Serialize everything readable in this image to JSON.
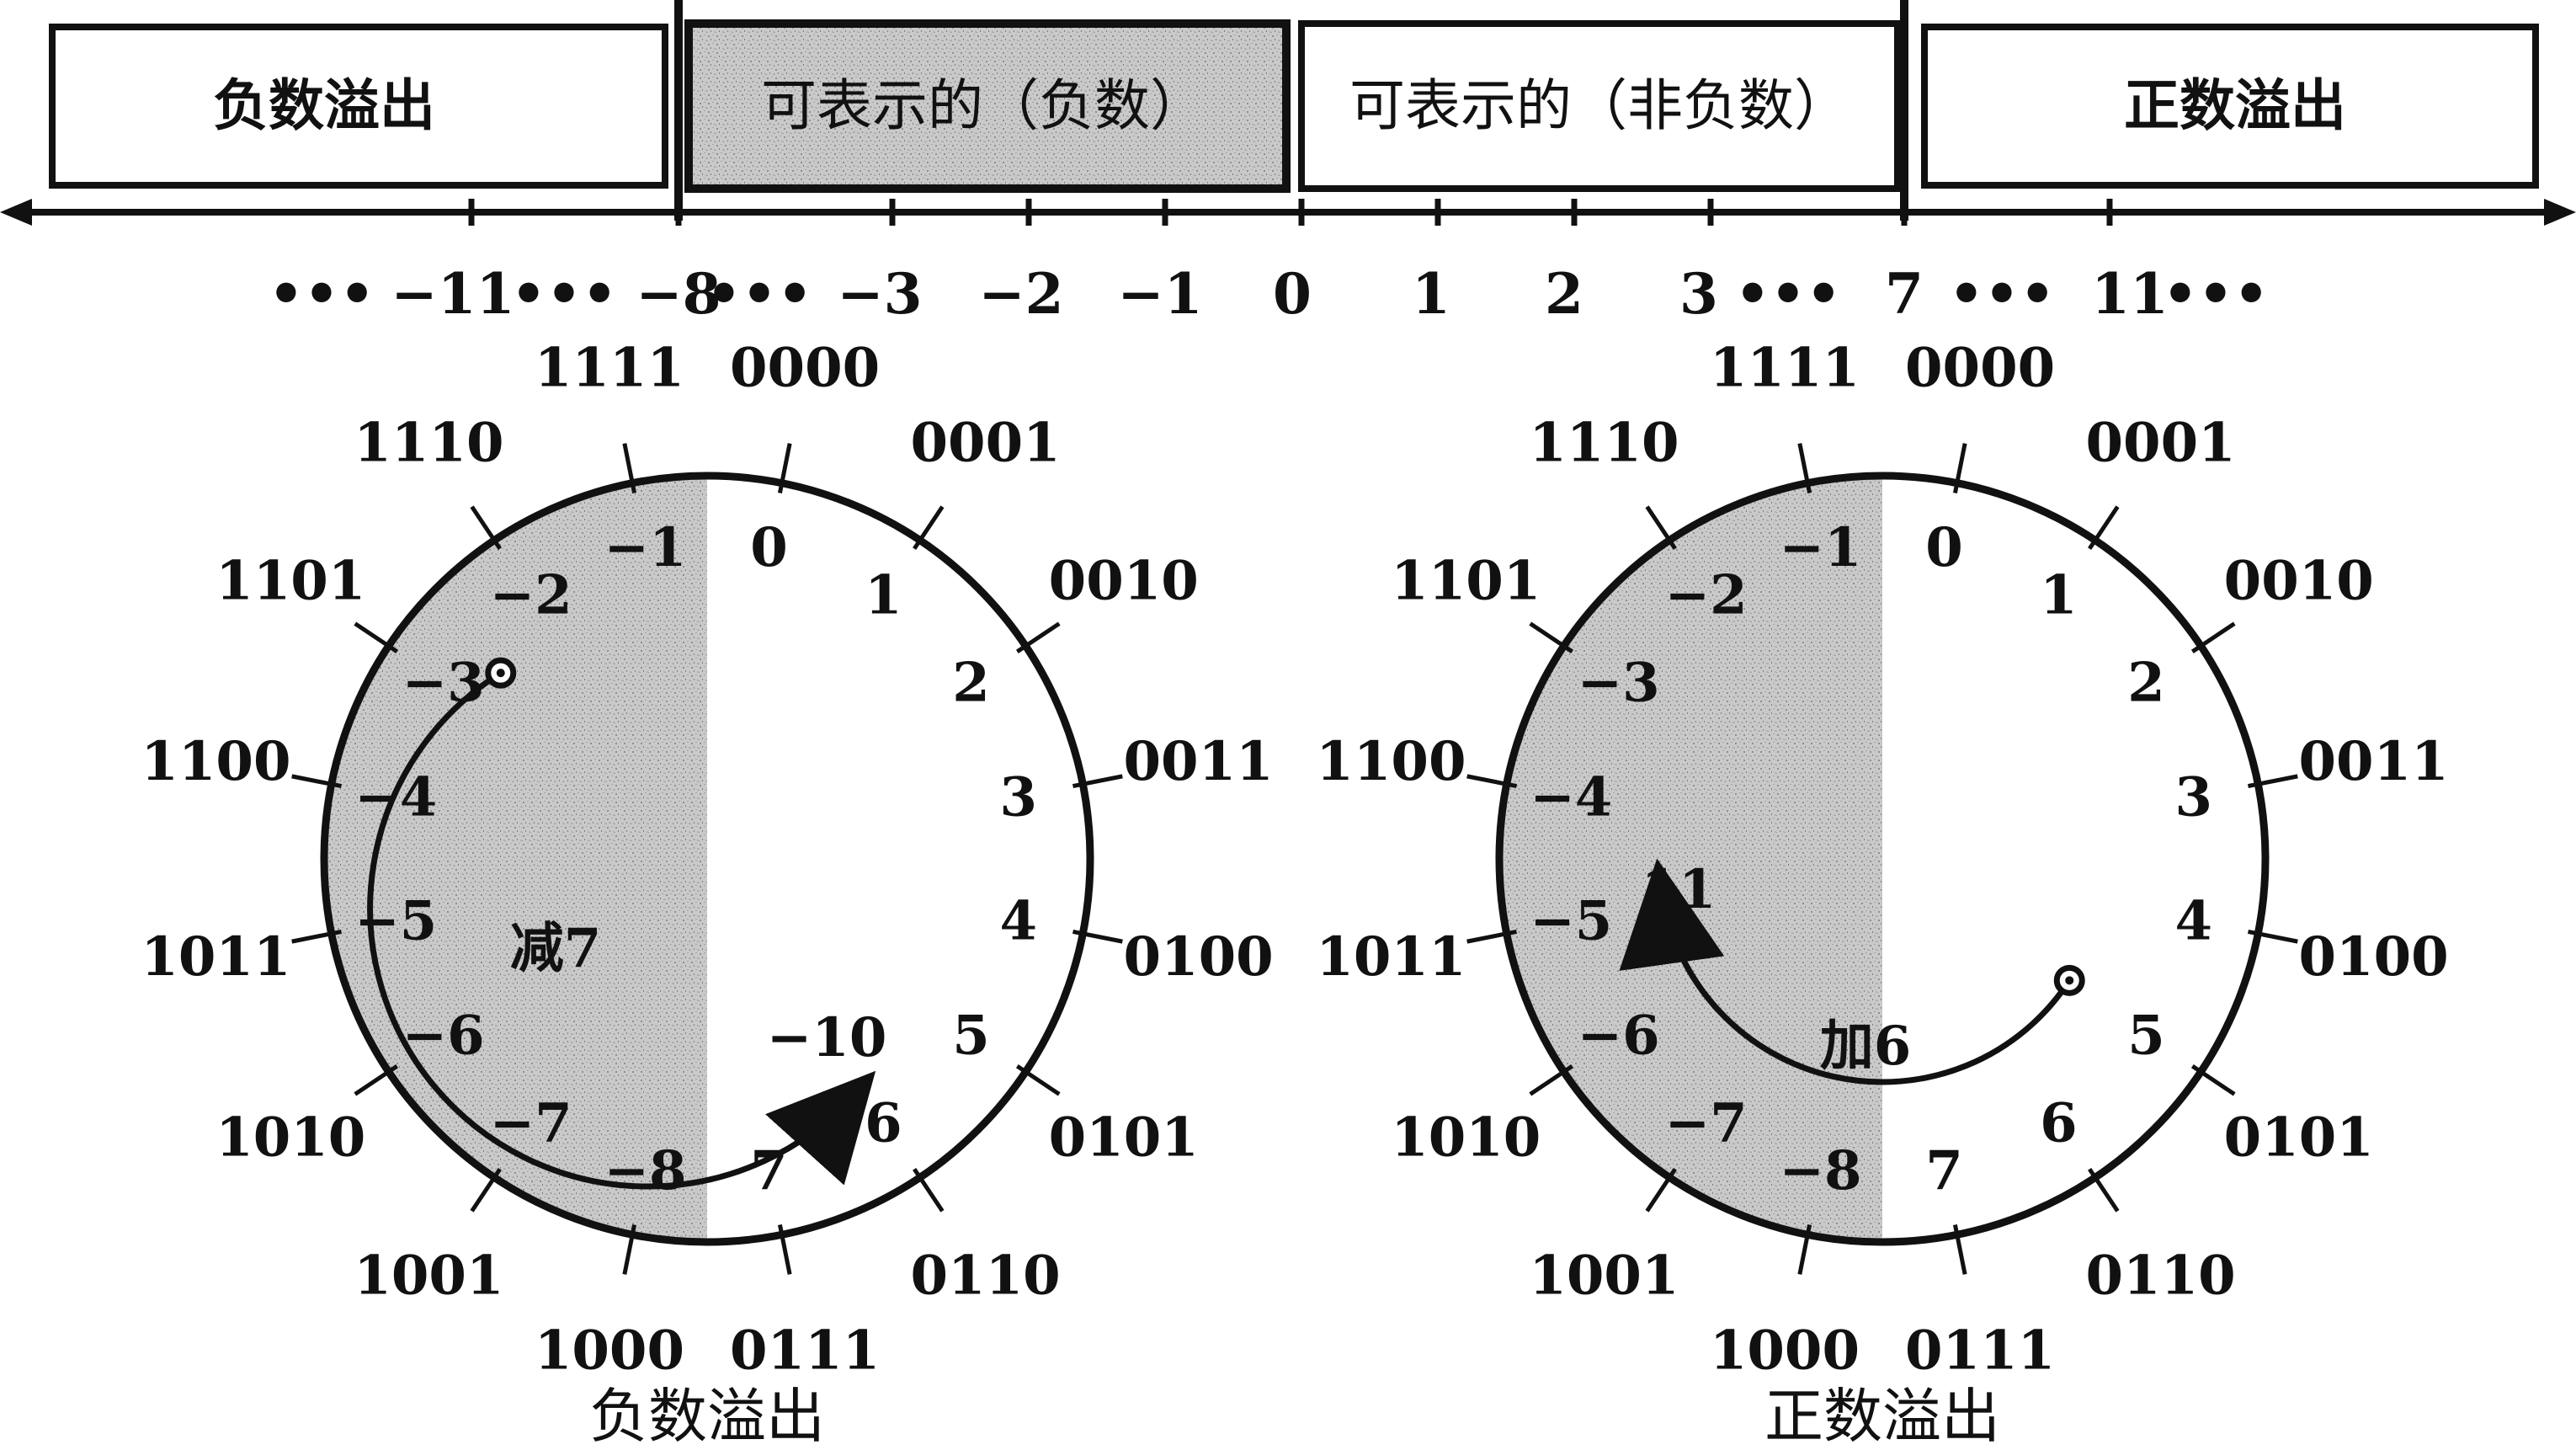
{
  "segments": {
    "neg_overflow": "负数溢出",
    "rep_negative": "可表示的（负数）",
    "rep_nonnegative": "可表示的（非负数）",
    "pos_overflow": "正数溢出"
  },
  "number_line": {
    "labels": [
      "•••",
      "−11",
      "•••",
      "−8",
      "•••",
      "−3",
      "−2",
      "−1",
      "0",
      "1",
      "2",
      "3",
      "•••",
      "7",
      "•••",
      "11",
      "•••"
    ]
  },
  "wheel": {
    "values": [
      "0",
      "1",
      "2",
      "3",
      "4",
      "5",
      "6",
      "7",
      "−8",
      "−7",
      "−6",
      "−5",
      "−4",
      "−3",
      "−2",
      "−1"
    ],
    "bits": [
      "0000",
      "0001",
      "0010",
      "0011",
      "0100",
      "0101",
      "0110",
      "0111",
      "1000",
      "1001",
      "1010",
      "1011",
      "1100",
      "1101",
      "1110",
      "1111"
    ]
  },
  "left_wheel": {
    "operation": "减7",
    "result": "−10",
    "caption": "负数溢出"
  },
  "right_wheel": {
    "operation": "加6",
    "result": "11",
    "caption": "正数溢出"
  },
  "colors": {
    "ink": "#111111",
    "shade": "#c4c4c4",
    "shade_dark": "#9a9a9a"
  }
}
